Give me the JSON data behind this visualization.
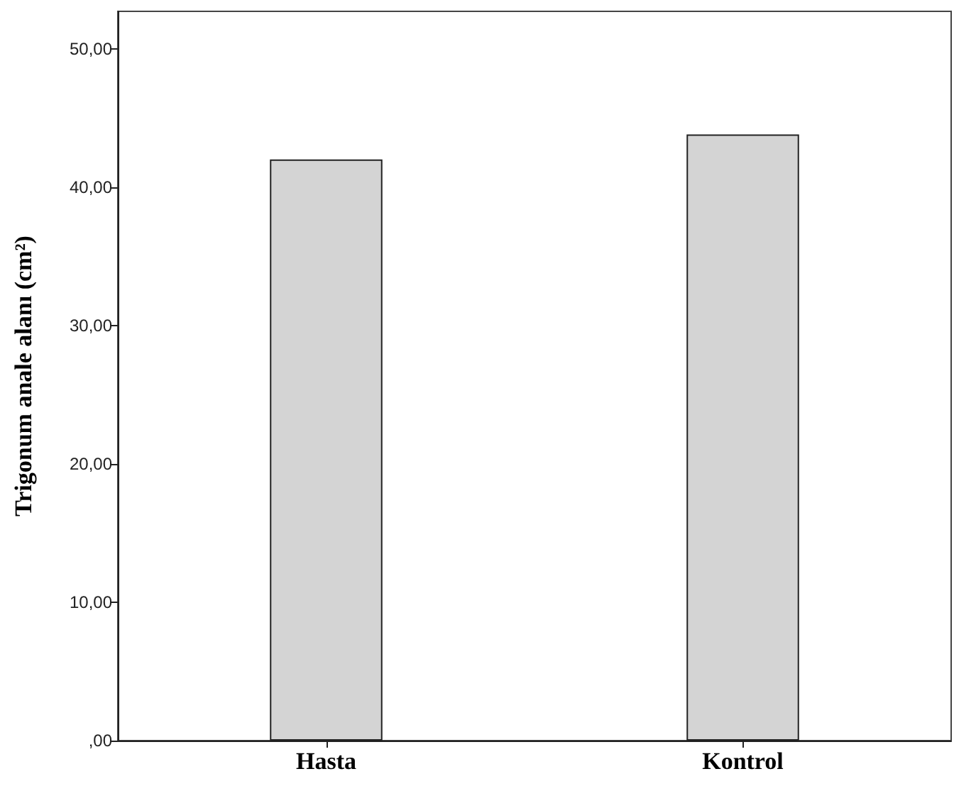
{
  "chart_data": {
    "type": "bar",
    "ylabel": "Trigonum anale alanı (cm²)",
    "categories": [
      "Hasta",
      "Kontrol"
    ],
    "values": [
      42.0,
      43.8
    ],
    "color": "#d4d4d4",
    "ylim": [
      0,
      52.7
    ],
    "yticks": [
      {
        "value": 0,
        "label": ",00"
      },
      {
        "value": 10,
        "label": "10,00"
      },
      {
        "value": 20,
        "label": "20,00"
      },
      {
        "value": 30,
        "label": "30,00"
      },
      {
        "value": 40,
        "label": "40,00"
      },
      {
        "value": 50,
        "label": "50,00"
      }
    ],
    "grid": false
  }
}
